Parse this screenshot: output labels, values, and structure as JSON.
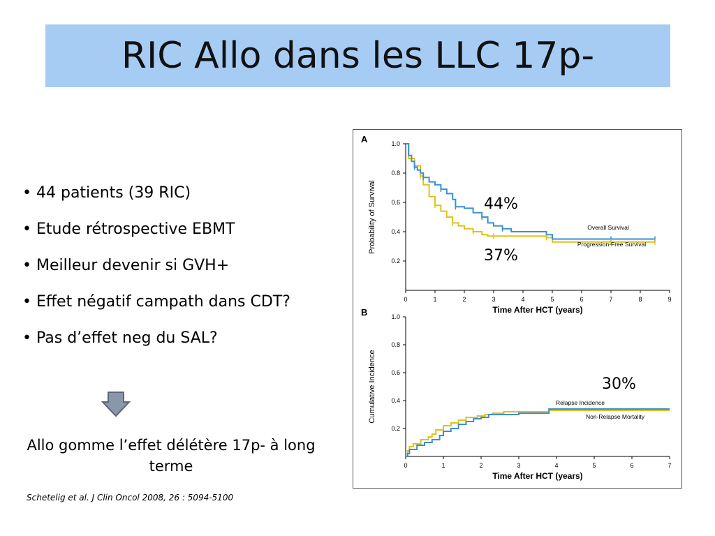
{
  "title": "RIC Allo dans les LLC 17p-",
  "bullets": [
    "44 patients (39 RIC)",
    "Etude rétrospective EBMT",
    "Meilleur devenir si GVH+",
    "Effet négatif campath dans CDT?",
    "Pas d’effet neg du SAL?"
  ],
  "bullet_char": "•",
  "conclusion": "Allo gomme l’effet délétère 17p- à long terme",
  "reference": "Schetelig et al. J Clin Oncol 2008, 26 : 5094-5100",
  "annotations": {
    "a_upper": "44%",
    "a_lower": "37%",
    "b": "30%"
  },
  "colors": {
    "title_bg": "#a6ccf4",
    "blue_series": "#3a8fd6",
    "yellow_series": "#e0c21a",
    "arrow": "#8a97a8"
  },
  "chart_data": [
    {
      "type": "line",
      "panel": "A",
      "xlabel": "Time After HCT (years)",
      "ylabel": "Probability of Survival",
      "xlim": [
        0,
        9
      ],
      "ylim": [
        0,
        1.0
      ],
      "xticks": [
        "0",
        "1",
        "2",
        "3",
        "4",
        "5",
        "6",
        "7",
        "8",
        "9"
      ],
      "yticks": [
        "0.2",
        "0.4",
        "0.6",
        "0.8",
        "1.0"
      ],
      "series": [
        {
          "name": "Overall Survival",
          "color": "#3a8fd6",
          "x": [
            0,
            0.1,
            0.2,
            0.3,
            0.4,
            0.5,
            0.6,
            0.8,
            1.0,
            1.2,
            1.4,
            1.6,
            1.7,
            2.0,
            2.3,
            2.6,
            2.8,
            3.0,
            3.3,
            3.6,
            4.0,
            4.8,
            5.0,
            6.0,
            7.0,
            8.5
          ],
          "y": [
            1.0,
            0.92,
            0.88,
            0.84,
            0.82,
            0.8,
            0.77,
            0.74,
            0.72,
            0.69,
            0.66,
            0.62,
            0.57,
            0.56,
            0.53,
            0.5,
            0.46,
            0.44,
            0.42,
            0.4,
            0.4,
            0.38,
            0.35,
            0.35,
            0.35,
            0.35
          ],
          "label": "Overall Survival"
        },
        {
          "name": "Progression-Free Survival",
          "color": "#e0c21a",
          "x": [
            0,
            0.1,
            0.3,
            0.5,
            0.6,
            0.8,
            1.0,
            1.2,
            1.4,
            1.6,
            1.8,
            2.0,
            2.3,
            2.6,
            2.8,
            3.0,
            3.5,
            4.0,
            4.8,
            5.0,
            6.0,
            7.0,
            8.5
          ],
          "y": [
            1.0,
            0.9,
            0.85,
            0.78,
            0.72,
            0.64,
            0.58,
            0.54,
            0.5,
            0.46,
            0.44,
            0.42,
            0.4,
            0.38,
            0.37,
            0.37,
            0.37,
            0.37,
            0.36,
            0.33,
            0.33,
            0.33,
            0.33
          ],
          "label": "Progression-Free Survival"
        }
      ]
    },
    {
      "type": "line",
      "panel": "B",
      "xlabel": "Time After HCT (years)",
      "ylabel": "Cumulative Incidence",
      "xlim": [
        0,
        7
      ],
      "ylim": [
        0,
        1.0
      ],
      "xticks": [
        "0",
        "1",
        "2",
        "3",
        "4",
        "5",
        "6",
        "7"
      ],
      "yticks": [
        "0.2",
        "0.4",
        "0.6",
        "0.8",
        "1.0"
      ],
      "series": [
        {
          "name": "Relapse Incidence",
          "color": "#3a8fd6",
          "x": [
            0,
            0.05,
            0.1,
            0.2,
            0.3,
            0.5,
            0.7,
            0.9,
            1.0,
            1.2,
            1.4,
            1.6,
            1.8,
            2.0,
            2.2,
            2.6,
            3.0,
            3.5,
            3.8,
            4.5,
            5.5,
            7.0
          ],
          "y": [
            0,
            0.02,
            0.05,
            0.05,
            0.08,
            0.1,
            0.12,
            0.15,
            0.18,
            0.2,
            0.23,
            0.25,
            0.27,
            0.28,
            0.3,
            0.3,
            0.31,
            0.31,
            0.34,
            0.34,
            0.34,
            0.34
          ],
          "label": "Relapse Incidence"
        },
        {
          "name": "Non-Relapse Mortality",
          "color": "#e0c21a",
          "x": [
            0,
            0.05,
            0.1,
            0.2,
            0.4,
            0.6,
            0.7,
            0.8,
            1.0,
            1.2,
            1.4,
            1.6,
            1.9,
            2.1,
            2.3,
            2.6,
            3.0,
            3.8,
            5.0,
            7.0
          ],
          "y": [
            0,
            0.04,
            0.07,
            0.09,
            0.12,
            0.14,
            0.16,
            0.19,
            0.22,
            0.24,
            0.26,
            0.28,
            0.29,
            0.3,
            0.31,
            0.32,
            0.32,
            0.33,
            0.33,
            0.33
          ],
          "label": "Non-Relapse Mortality"
        }
      ]
    }
  ]
}
